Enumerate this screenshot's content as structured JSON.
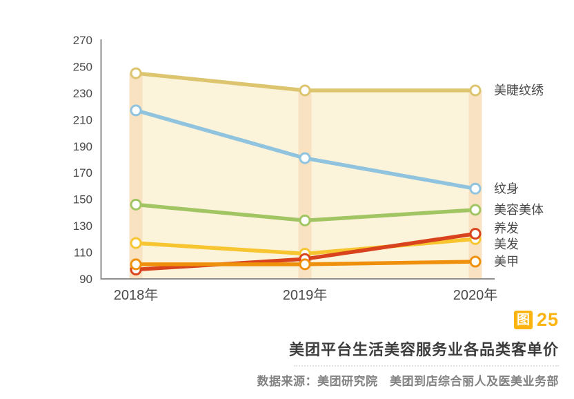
{
  "chart_data": {
    "type": "line",
    "title": "美团平台生活美容服务业各品类客单价",
    "x_categories": [
      "2018年",
      "2019年",
      "2020年"
    ],
    "xlabel": "",
    "ylabel": "",
    "ylim": [
      90,
      270
    ],
    "y_ticks": [
      90,
      110,
      130,
      150,
      170,
      190,
      210,
      230,
      250,
      270
    ],
    "grid": false,
    "legend_position": "right-of-line-end",
    "series": [
      {
        "name": "美睫纹绣",
        "color": "#DCC56E",
        "values": [
          245,
          232,
          232
        ]
      },
      {
        "name": "纹身",
        "color": "#8FC3DE",
        "values": [
          217,
          181,
          158
        ]
      },
      {
        "name": "美容美体",
        "color": "#A2C564",
        "values": [
          146,
          134,
          142
        ]
      },
      {
        "name": "美发",
        "color": "#F6C52F",
        "values": [
          117,
          109,
          120
        ]
      },
      {
        "name": "养发",
        "color": "#D8431D",
        "values": [
          97,
          105,
          124
        ]
      },
      {
        "name": "美甲",
        "color": "#EF900D",
        "values": [
          101,
          101,
          103
        ]
      }
    ],
    "area_fill_color": "#FCF3DB",
    "band_color": "#F8E2C1",
    "axis_color": "#8F8F8F",
    "tick_color": "#4A4A4A"
  },
  "caption": {
    "figure_badge": "图",
    "figure_number": "25",
    "title": "美团平台生活美容服务业各品类客单价",
    "source": "数据来源：美团研究院　美团到店综合丽人及医美业务部",
    "accent_color": "#FBB40F"
  }
}
